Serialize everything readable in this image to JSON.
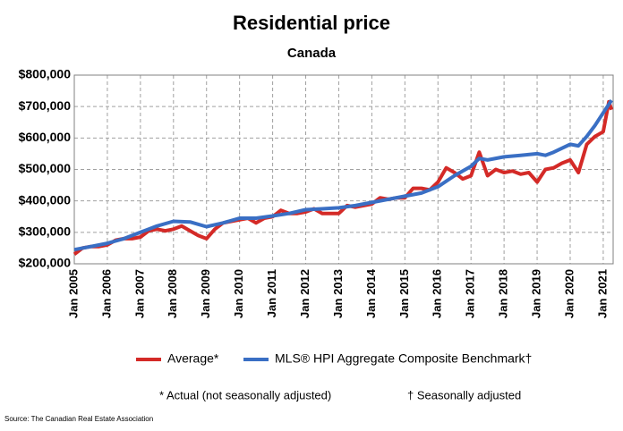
{
  "chart_data": {
    "type": "line",
    "title": "Residential price",
    "subtitle": "Canada",
    "xlim": [
      2005,
      2021.3
    ],
    "xticks": [
      {
        "value": 2005,
        "label": "Jan 2005"
      },
      {
        "value": 2006,
        "label": "Jan 2006"
      },
      {
        "value": 2007,
        "label": "Jan 2007"
      },
      {
        "value": 2008,
        "label": "Jan 2008"
      },
      {
        "value": 2009,
        "label": "Jan 2009"
      },
      {
        "value": 2010,
        "label": "Jan 2010"
      },
      {
        "value": 2011,
        "label": "Jan 2011"
      },
      {
        "value": 2012,
        "label": "Jan 2012"
      },
      {
        "value": 2013,
        "label": "Jan 2013"
      },
      {
        "value": 2014,
        "label": "Jan 2014"
      },
      {
        "value": 2015,
        "label": "Jan 2015"
      },
      {
        "value": 2016,
        "label": "Jan 2016"
      },
      {
        "value": 2017,
        "label": "Jan 2017"
      },
      {
        "value": 2018,
        "label": "Jan 2018"
      },
      {
        "value": 2019,
        "label": "Jan 2019"
      },
      {
        "value": 2020,
        "label": "Jan 2020"
      },
      {
        "value": 2021,
        "label": "Jan 2021"
      }
    ],
    "ylim": [
      200000,
      800000
    ],
    "yticks": [
      {
        "value": 200000,
        "label": "$200,000"
      },
      {
        "value": 300000,
        "label": "$300,000"
      },
      {
        "value": 400000,
        "label": "$400,000"
      },
      {
        "value": 500000,
        "label": "$500,000"
      },
      {
        "value": 600000,
        "label": "$600,000"
      },
      {
        "value": 700000,
        "label": "$700,000"
      },
      {
        "value": 800000,
        "label": "$800,000"
      }
    ],
    "grid": true,
    "series": [
      {
        "name": "Average*",
        "color": "#d42a27",
        "x": [
          2005,
          2005.25,
          2005.5,
          2005.75,
          2006,
          2006.25,
          2006.5,
          2006.75,
          2007,
          2007.25,
          2007.5,
          2007.75,
          2008,
          2008.25,
          2008.5,
          2008.75,
          2009,
          2009.25,
          2009.5,
          2009.75,
          2010,
          2010.25,
          2010.5,
          2010.75,
          2011,
          2011.25,
          2011.5,
          2011.75,
          2012,
          2012.25,
          2012.5,
          2012.75,
          2013,
          2013.25,
          2013.5,
          2013.75,
          2014,
          2014.25,
          2014.5,
          2014.75,
          2015,
          2015.25,
          2015.5,
          2015.75,
          2016,
          2016.25,
          2016.5,
          2016.75,
          2017,
          2017.25,
          2017.5,
          2017.75,
          2018,
          2018.25,
          2018.5,
          2018.75,
          2019,
          2019.25,
          2019.5,
          2019.75,
          2020,
          2020.25,
          2020.5,
          2020.75,
          2021,
          2021.17,
          2021.25
        ],
        "values": [
          230000,
          250000,
          255000,
          255000,
          260000,
          275000,
          280000,
          280000,
          285000,
          305000,
          310000,
          305000,
          310000,
          320000,
          305000,
          290000,
          280000,
          310000,
          330000,
          335000,
          340000,
          345000,
          330000,
          345000,
          350000,
          370000,
          360000,
          360000,
          365000,
          375000,
          360000,
          360000,
          360000,
          385000,
          380000,
          385000,
          390000,
          410000,
          405000,
          410000,
          410000,
          440000,
          440000,
          435000,
          460000,
          505000,
          490000,
          470000,
          480000,
          555000,
          480000,
          500000,
          490000,
          495000,
          485000,
          490000,
          460000,
          500000,
          505000,
          520000,
          530000,
          490000,
          580000,
          605000,
          620000,
          715000,
          690000
        ]
      },
      {
        "name": "MLS® HPI Aggregate Composite Benchmark†",
        "color": "#3a6fc4",
        "x": [
          2005,
          2005.5,
          2006,
          2006.5,
          2007,
          2007.5,
          2008,
          2008.5,
          2009,
          2009.5,
          2010,
          2010.5,
          2011,
          2011.5,
          2012,
          2012.5,
          2013,
          2013.5,
          2014,
          2014.5,
          2015,
          2015.5,
          2016,
          2016.5,
          2017,
          2017.25,
          2017.5,
          2018,
          2018.5,
          2019,
          2019.25,
          2019.5,
          2020,
          2020.25,
          2020.5,
          2020.75,
          2021,
          2021.25
        ],
        "values": [
          245000,
          255000,
          265000,
          280000,
          300000,
          320000,
          335000,
          333000,
          318000,
          330000,
          345000,
          345000,
          352000,
          360000,
          372000,
          375000,
          378000,
          385000,
          395000,
          405000,
          415000,
          425000,
          445000,
          480000,
          510000,
          535000,
          530000,
          540000,
          545000,
          550000,
          545000,
          555000,
          580000,
          575000,
          605000,
          640000,
          680000,
          720000
        ]
      }
    ],
    "footnotes": [
      "* Actual (not seasonally adjusted)",
      "† Seasonally adjusted"
    ],
    "source": "Source: The Canadian Real Estate Association"
  }
}
